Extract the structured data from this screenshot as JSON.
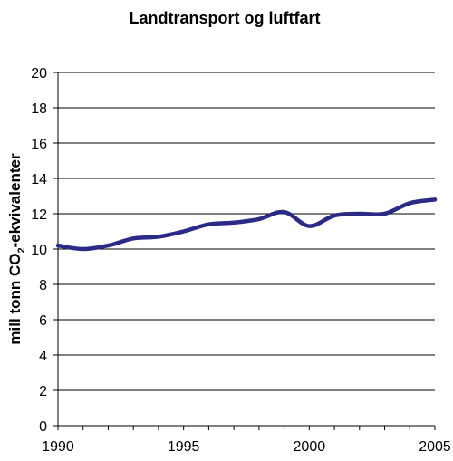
{
  "chart_data": {
    "type": "line",
    "title": "Landtransport og luftfart",
    "ylabel": {
      "prefix": "mill tonn CO",
      "subscript": "2",
      "suffix": "-ekvivalenter"
    },
    "xlabel": "",
    "xlim": [
      1990,
      2005
    ],
    "ylim": [
      0,
      20
    ],
    "x_ticks": [
      1990,
      1995,
      2000,
      2005
    ],
    "y_ticks": [
      0,
      2,
      4,
      6,
      8,
      10,
      12,
      14,
      16,
      18,
      20
    ],
    "grid": true,
    "colors": {
      "line": "#2b2a84",
      "grid": "#000000",
      "axis": "#000000"
    },
    "series": [
      {
        "x": [
          1990,
          1991,
          1992,
          1993,
          1994,
          1995,
          1996,
          1997,
          1998,
          1999,
          2000,
          2001,
          2002,
          2003,
          2004,
          2005
        ],
        "y": [
          10.2,
          10.0,
          10.2,
          10.6,
          10.7,
          11.0,
          11.4,
          11.5,
          11.7,
          12.1,
          11.3,
          11.9,
          12.0,
          12.0,
          12.6,
          12.8
        ],
        "smooth": true
      }
    ]
  }
}
